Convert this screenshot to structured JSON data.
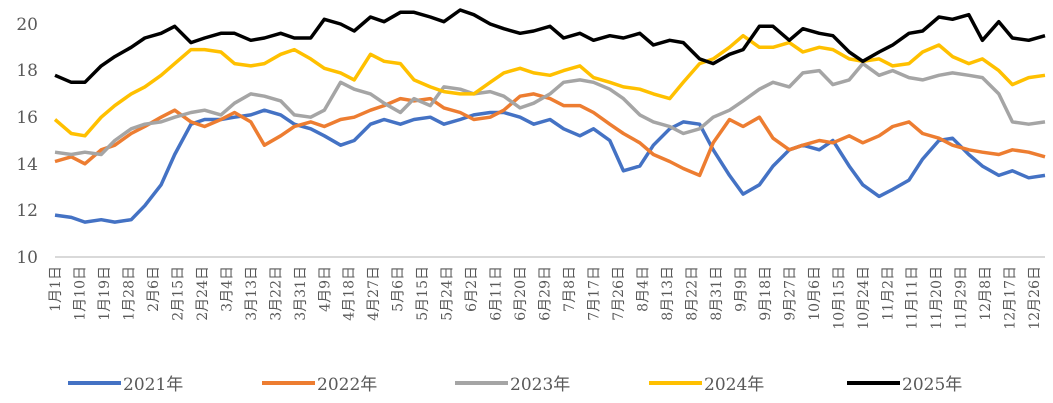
{
  "chart_data": {
    "type": "line",
    "title": "",
    "xlabel": "",
    "ylabel": "",
    "ylim": [
      10,
      20
    ],
    "yticks": [
      "10",
      "12",
      "14",
      "16",
      "18",
      "20"
    ],
    "grid": "baseline only",
    "legend_position": "bottom",
    "x_tick_labels": [
      "1月1日",
      "1月10日",
      "1月19日",
      "1月28日",
      "2月6日",
      "2月15日",
      "2月24日",
      "3月4日",
      "3月13日",
      "3月22日",
      "3月31日",
      "4月9日",
      "4月18日",
      "4月27日",
      "5月6日",
      "5月15日",
      "5月24日",
      "6月2日",
      "6月11日",
      "6月20日",
      "6月29日",
      "7月8日",
      "7月17日",
      "7月26日",
      "8月4日",
      "8月13日",
      "8月22日",
      "8月31日",
      "9月9日",
      "9月18日",
      "9月27日",
      "10月6日",
      "10月15日",
      "10月24日",
      "11月2日",
      "11月11日",
      "11月20日",
      "11月29日",
      "12月8日",
      "12月17日",
      "12月26日"
    ],
    "x_day_of_year": [
      0,
      6,
      11,
      17,
      22,
      28,
      33,
      39,
      44,
      50,
      55,
      61,
      66,
      72,
      77,
      83,
      88,
      94,
      99,
      105,
      110,
      116,
      121,
      127,
      132,
      138,
      143,
      149,
      154,
      160,
      165,
      171,
      176,
      182,
      187,
      193,
      198,
      204,
      209,
      215,
      220,
      226,
      231,
      237,
      242,
      248,
      253,
      259,
      264,
      270,
      275,
      281,
      286,
      292,
      297,
      303,
      308,
      314,
      319,
      325,
      330,
      336,
      341,
      347,
      352,
      358,
      364
    ],
    "series": [
      {
        "name": "2021年",
        "color": "#4472C4",
        "values": [
          11.8,
          11.7,
          11.5,
          11.6,
          11.5,
          11.6,
          12.2,
          13.1,
          14.4,
          15.7,
          15.9,
          15.9,
          16.0,
          16.1,
          16.3,
          16.1,
          15.7,
          15.5,
          15.2,
          14.8,
          15.0,
          15.7,
          15.9,
          15.7,
          15.9,
          16.0,
          15.7,
          15.9,
          16.1,
          16.2,
          16.2,
          16.0,
          15.7,
          15.9,
          15.5,
          15.2,
          15.5,
          15.0,
          13.7,
          13.9,
          14.8,
          15.5,
          15.8,
          15.7,
          14.6,
          13.5,
          12.7,
          13.1,
          13.9,
          14.6,
          14.8,
          14.6,
          15.0,
          13.9,
          13.1,
          12.6,
          12.9,
          13.3,
          14.2,
          15.0,
          15.1,
          14.4,
          13.9,
          13.5,
          13.7,
          13.4,
          13.5
        ]
      },
      {
        "name": "2022年",
        "color": "#ED7D31",
        "values": [
          14.1,
          14.3,
          14.0,
          14.6,
          14.8,
          15.3,
          15.6,
          16.0,
          16.3,
          15.8,
          15.6,
          15.9,
          16.2,
          15.8,
          14.8,
          15.2,
          15.6,
          15.8,
          15.6,
          15.9,
          16.0,
          16.3,
          16.5,
          16.8,
          16.7,
          16.8,
          16.4,
          16.2,
          15.9,
          16.0,
          16.3,
          16.9,
          17.0,
          16.8,
          16.5,
          16.5,
          16.2,
          15.7,
          15.3,
          14.9,
          14.4,
          14.1,
          13.8,
          13.5,
          14.9,
          15.9,
          15.6,
          16.0,
          15.1,
          14.6,
          14.8,
          15.0,
          14.9,
          15.2,
          14.9,
          15.2,
          15.6,
          15.8,
          15.3,
          15.1,
          14.8,
          14.6,
          14.5,
          14.4,
          14.6,
          14.5,
          14.3
        ]
      },
      {
        "name": "2023年",
        "color": "#A5A5A5",
        "values": [
          14.5,
          14.4,
          14.5,
          14.4,
          15.0,
          15.5,
          15.7,
          15.8,
          16.0,
          16.2,
          16.3,
          16.1,
          16.6,
          17.0,
          16.9,
          16.7,
          16.1,
          16.0,
          16.3,
          17.5,
          17.2,
          17.0,
          16.6,
          16.2,
          16.8,
          16.5,
          17.3,
          17.2,
          17.0,
          17.1,
          16.9,
          16.4,
          16.6,
          17.0,
          17.5,
          17.6,
          17.5,
          17.2,
          16.8,
          16.1,
          15.8,
          15.6,
          15.3,
          15.5,
          16.0,
          16.3,
          16.7,
          17.2,
          17.5,
          17.3,
          17.9,
          18.0,
          17.4,
          17.6,
          18.3,
          17.8,
          18.0,
          17.7,
          17.6,
          17.8,
          17.9,
          17.8,
          17.7,
          17.0,
          15.8,
          15.7,
          15.8
        ]
      },
      {
        "name": "2024年",
        "color": "#FFC000",
        "values": [
          15.9,
          15.3,
          15.2,
          16.0,
          16.5,
          17.0,
          17.3,
          17.8,
          18.3,
          18.9,
          18.9,
          18.8,
          18.3,
          18.2,
          18.3,
          18.7,
          18.9,
          18.5,
          18.1,
          17.9,
          17.6,
          18.7,
          18.4,
          18.3,
          17.6,
          17.3,
          17.1,
          17.0,
          17.0,
          17.5,
          17.9,
          18.1,
          17.9,
          17.8,
          18.0,
          18.2,
          17.7,
          17.5,
          17.3,
          17.2,
          17.0,
          16.8,
          17.5,
          18.3,
          18.5,
          19.0,
          19.5,
          19.0,
          19.0,
          19.2,
          18.8,
          19.0,
          18.9,
          18.5,
          18.4,
          18.5,
          18.2,
          18.3,
          18.8,
          19.1,
          18.6,
          18.3,
          18.5,
          18.0,
          17.4,
          17.7,
          17.8
        ]
      },
      {
        "name": "2025年",
        "color": "#000000",
        "values": [
          17.8,
          17.5,
          17.5,
          18.2,
          18.6,
          19.0,
          19.4,
          19.6,
          19.9,
          19.2,
          19.4,
          19.6,
          19.6,
          19.3,
          19.4,
          19.6,
          19.4,
          19.4,
          20.2,
          20.0,
          19.7,
          20.3,
          20.1,
          20.5,
          20.5,
          20.3,
          20.1,
          20.6,
          20.4,
          20.0,
          19.8,
          19.6,
          19.7,
          19.9,
          19.4,
          19.6,
          19.3,
          19.5,
          19.4,
          19.6,
          19.1,
          19.3,
          19.2,
          18.5,
          18.3,
          18.7,
          18.9,
          19.9,
          19.9,
          19.3,
          19.8,
          19.6,
          19.5,
          18.8,
          18.4,
          18.8,
          19.1,
          19.6,
          19.7,
          20.3,
          20.2,
          20.4,
          19.3,
          20.1,
          19.4,
          19.3,
          19.5
        ]
      }
    ]
  }
}
